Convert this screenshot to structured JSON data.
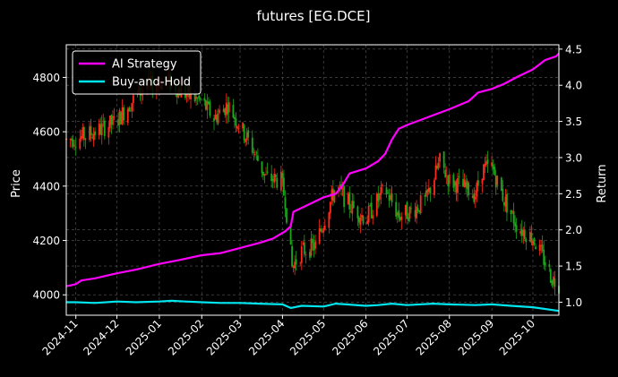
{
  "chart_data": {
    "type": "candlestick-with-lines",
    "title": "futures [EG.DCE]",
    "ylabel_left": "Price",
    "ylabel_right": "Return",
    "left_ylim": [
      3925,
      4920
    ],
    "right_ylim": [
      0.82,
      4.56
    ],
    "left_yticks": [
      4000,
      4200,
      4400,
      4600,
      4800
    ],
    "left_ytick_labels": [
      "4000",
      "4200",
      "4400",
      "4600",
      "4800"
    ],
    "right_yticks": [
      1.0,
      1.5,
      2.0,
      2.5,
      3.0,
      3.5,
      4.0,
      4.5
    ],
    "right_ytick_labels": [
      "1.0",
      "1.5",
      "2.0",
      "2.5",
      "3.0",
      "3.5",
      "4.0",
      "4.5"
    ],
    "x_range": [
      "2024-10-25",
      "2025-10-20"
    ],
    "xtick_dates": [
      "2024-11-01",
      "2024-12-01",
      "2025-01-01",
      "2025-02-01",
      "2025-03-01",
      "2025-04-01",
      "2025-05-01",
      "2025-06-01",
      "2025-07-01",
      "2025-08-01",
      "2025-09-01",
      "2025-10-01"
    ],
    "xtick_labels": [
      "2024-11",
      "2024-12",
      "2025-01",
      "2025-02",
      "2025-03",
      "2025-04",
      "2025-05",
      "2025-06",
      "2025-07",
      "2025-08",
      "2025-09",
      "2025-10"
    ],
    "grid": true,
    "legend_position": "top-left",
    "colors": {
      "background": "#000000",
      "up": "#ff2a1a",
      "down": "#1aa81a",
      "ai_strategy": "#ff00ff",
      "buy_and_hold": "#00e5ee",
      "grid": "#5a5a5a",
      "text": "#ffffff"
    },
    "series": [
      {
        "name": "AI Strategy",
        "color": "#ff00ff",
        "points": [
          [
            "2024-10-25",
            1.22
          ],
          [
            "2024-11-01",
            1.25
          ],
          [
            "2024-11-05",
            1.3
          ],
          [
            "2024-11-15",
            1.33
          ],
          [
            "2024-12-01",
            1.4
          ],
          [
            "2024-12-15",
            1.45
          ],
          [
            "2025-01-01",
            1.53
          ],
          [
            "2025-01-15",
            1.58
          ],
          [
            "2025-02-01",
            1.65
          ],
          [
            "2025-02-15",
            1.68
          ],
          [
            "2025-03-01",
            1.75
          ],
          [
            "2025-03-15",
            1.82
          ],
          [
            "2025-03-25",
            1.88
          ],
          [
            "2025-04-03",
            1.98
          ],
          [
            "2025-04-07",
            2.05
          ],
          [
            "2025-04-09",
            2.25
          ],
          [
            "2025-04-20",
            2.35
          ],
          [
            "2025-05-01",
            2.45
          ],
          [
            "2025-05-10",
            2.5
          ],
          [
            "2025-05-15",
            2.62
          ],
          [
            "2025-05-20",
            2.78
          ],
          [
            "2025-06-01",
            2.85
          ],
          [
            "2025-06-10",
            2.95
          ],
          [
            "2025-06-15",
            3.05
          ],
          [
            "2025-06-20",
            3.25
          ],
          [
            "2025-06-25",
            3.4
          ],
          [
            "2025-07-01",
            3.45
          ],
          [
            "2025-07-15",
            3.55
          ],
          [
            "2025-08-01",
            3.67
          ],
          [
            "2025-08-15",
            3.78
          ],
          [
            "2025-08-22",
            3.9
          ],
          [
            "2025-09-01",
            3.95
          ],
          [
            "2025-09-10",
            4.02
          ],
          [
            "2025-09-20",
            4.12
          ],
          [
            "2025-10-01",
            4.22
          ],
          [
            "2025-10-10",
            4.35
          ],
          [
            "2025-10-18",
            4.4
          ],
          [
            "2025-10-20",
            4.44
          ]
        ]
      },
      {
        "name": "Buy-and-Hold",
        "color": "#00e5ee",
        "points": [
          [
            "2024-10-25",
            1.0
          ],
          [
            "2024-11-01",
            1.0
          ],
          [
            "2024-11-15",
            0.99
          ],
          [
            "2024-12-01",
            1.01
          ],
          [
            "2024-12-15",
            1.0
          ],
          [
            "2025-01-01",
            1.01
          ],
          [
            "2025-01-10",
            1.02
          ],
          [
            "2025-01-20",
            1.01
          ],
          [
            "2025-02-01",
            1.0
          ],
          [
            "2025-02-15",
            0.99
          ],
          [
            "2025-03-01",
            0.99
          ],
          [
            "2025-03-15",
            0.98
          ],
          [
            "2025-04-01",
            0.97
          ],
          [
            "2025-04-07",
            0.92
          ],
          [
            "2025-04-15",
            0.95
          ],
          [
            "2025-05-01",
            0.94
          ],
          [
            "2025-05-10",
            0.98
          ],
          [
            "2025-06-01",
            0.95
          ],
          [
            "2025-06-10",
            0.96
          ],
          [
            "2025-06-20",
            0.98
          ],
          [
            "2025-07-01",
            0.96
          ],
          [
            "2025-07-20",
            0.98
          ],
          [
            "2025-08-01",
            0.97
          ],
          [
            "2025-08-20",
            0.96
          ],
          [
            "2025-09-01",
            0.97
          ],
          [
            "2025-09-15",
            0.95
          ],
          [
            "2025-10-01",
            0.93
          ],
          [
            "2025-10-20",
            0.88
          ]
        ]
      }
    ],
    "price_path": [
      [
        "2024-10-25",
        4570
      ],
      [
        "2024-11-05",
        4580
      ],
      [
        "2024-11-15",
        4600
      ],
      [
        "2024-12-01",
        4640
      ],
      [
        "2024-12-10",
        4700
      ],
      [
        "2024-12-20",
        4760
      ],
      [
        "2025-01-05",
        4790
      ],
      [
        "2025-01-20",
        4740
      ],
      [
        "2025-02-01",
        4710
      ],
      [
        "2025-02-10",
        4650
      ],
      [
        "2025-02-20",
        4700
      ],
      [
        "2025-03-01",
        4620
      ],
      [
        "2025-03-10",
        4540
      ],
      [
        "2025-03-20",
        4430
      ],
      [
        "2025-03-31",
        4420
      ],
      [
        "2025-04-03",
        4350
      ],
      [
        "2025-04-08",
        4100
      ],
      [
        "2025-04-15",
        4160
      ],
      [
        "2025-04-25",
        4180
      ],
      [
        "2025-05-10",
        4400
      ],
      [
        "2025-05-20",
        4330
      ],
      [
        "2025-06-01",
        4280
      ],
      [
        "2025-06-15",
        4390
      ],
      [
        "2025-06-25",
        4290
      ],
      [
        "2025-07-05",
        4310
      ],
      [
        "2025-07-15",
        4350
      ],
      [
        "2025-07-25",
        4490
      ],
      [
        "2025-08-01",
        4420
      ],
      [
        "2025-08-10",
        4400
      ],
      [
        "2025-08-20",
        4370
      ],
      [
        "2025-08-25",
        4460
      ],
      [
        "2025-09-01",
        4470
      ],
      [
        "2025-09-10",
        4350
      ],
      [
        "2025-09-20",
        4250
      ],
      [
        "2025-10-01",
        4210
      ],
      [
        "2025-10-10",
        4120
      ],
      [
        "2025-10-15",
        4060
      ],
      [
        "2025-10-20",
        4040
      ]
    ]
  }
}
